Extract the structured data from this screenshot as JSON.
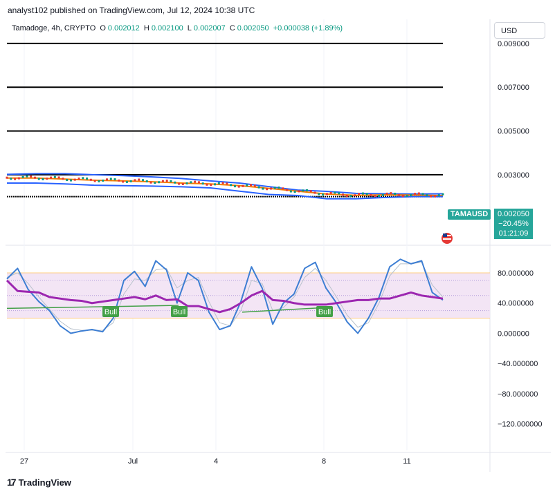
{
  "header": {
    "publish_line": "analyst102 published on TradingView.com, Jul 12, 2024 10:38 UTC"
  },
  "legend": {
    "symbol": "Tamadoge, 4h, CRYPTO",
    "open_label": "O",
    "open": "0.002012",
    "high_label": "H",
    "high": "0.002100",
    "low_label": "L",
    "low": "0.002007",
    "close_label": "C",
    "close": "0.002050",
    "change": "+0.000038 (+1.89%)"
  },
  "currency": "USD",
  "price_tag": {
    "symbol": "TAMAUSD",
    "price": "0.002050",
    "change_pct": "−20.45%",
    "countdown": "01:21:09"
  },
  "colors": {
    "up": "#089981",
    "tag": "#26a69a",
    "bb": "#2962ff",
    "ma": "#f57c00",
    "stoch_k": "#3d7ed3",
    "stoch_d": "#b8c2cc",
    "rsi": "#9c27b0",
    "divergence": "#43a047",
    "band_fill": "#f3e5f5"
  },
  "footer": {
    "logo": "TradingView"
  },
  "chart_data": [
    {
      "type": "line",
      "panel": "price",
      "y_axis_ticks": [
        "0.009000",
        "0.007000",
        "0.005000",
        "0.003000"
      ],
      "ylim": [
        0.0,
        0.0101
      ],
      "x_ticks": [
        "27",
        "Jul",
        "4",
        "8",
        "11"
      ],
      "horizontal_levels": [
        0.009,
        0.007,
        0.005,
        0.003,
        0.002
      ],
      "series": [
        {
          "role": "bb_upper",
          "values": [
            0.00302,
            0.00305,
            0.00305,
            0.003,
            0.00296,
            0.0029,
            0.00283,
            0.00272,
            0.00262,
            0.00246,
            0.0023,
            0.00224,
            0.00215,
            0.00213,
            0.00212,
            0.00213
          ]
        },
        {
          "role": "ma",
          "values": [
            0.00285,
            0.00285,
            0.0028,
            0.00275,
            0.00272,
            0.00268,
            0.00262,
            0.00258,
            0.0025,
            0.00238,
            0.00225,
            0.00212,
            0.00206,
            0.00208,
            0.00207,
            0.00205
          ]
        },
        {
          "role": "bb_lower",
          "values": [
            0.00262,
            0.00262,
            0.00258,
            0.00252,
            0.0025,
            0.00248,
            0.00245,
            0.0024,
            0.00225,
            0.0021,
            0.00205,
            0.0019,
            0.0019,
            0.00196,
            0.002,
            0.002
          ]
        }
      ]
    },
    {
      "type": "line",
      "panel": "stochastic_rsi",
      "y_axis_ticks": [
        "80.000000",
        "40.000000",
        "0.000000",
        "−40.000000",
        "−80.000000",
        "−120.000000"
      ],
      "ylim": [
        -155,
        112
      ],
      "band": [
        20,
        80
      ],
      "dotted_levels": [
        70,
        50,
        30
      ],
      "annotations": [
        "Bull",
        "Bull",
        "Bull"
      ],
      "series": [
        {
          "role": "stoch_k",
          "values": [
            72,
            86,
            58,
            42,
            30,
            10,
            0,
            3,
            5,
            2,
            20,
            70,
            82,
            62,
            96,
            84,
            40,
            80,
            70,
            28,
            5,
            10,
            42,
            88,
            60,
            12,
            40,
            52,
            86,
            94,
            60,
            40,
            15,
            0,
            20,
            48,
            88,
            98,
            92,
            96,
            54,
            44
          ]
        },
        {
          "role": "stoch_d",
          "values": [
            74,
            80,
            66,
            48,
            32,
            16,
            6,
            4,
            4,
            4,
            14,
            52,
            72,
            70,
            84,
            86,
            60,
            70,
            74,
            42,
            14,
            10,
            30,
            70,
            66,
            30,
            34,
            48,
            74,
            86,
            70,
            48,
            24,
            8,
            14,
            40,
            76,
            92,
            92,
            94,
            64,
            48
          ]
        },
        {
          "role": "rsi",
          "values": [
            70,
            56,
            55,
            54,
            48,
            46,
            44,
            43,
            40,
            42,
            44,
            46,
            48,
            45,
            50,
            44,
            45,
            36,
            36,
            32,
            28,
            32,
            40,
            50,
            56,
            44,
            43,
            40,
            38,
            38,
            38,
            40,
            42,
            44,
            44,
            46,
            46,
            50,
            54,
            50,
            48,
            46
          ]
        }
      ]
    }
  ]
}
